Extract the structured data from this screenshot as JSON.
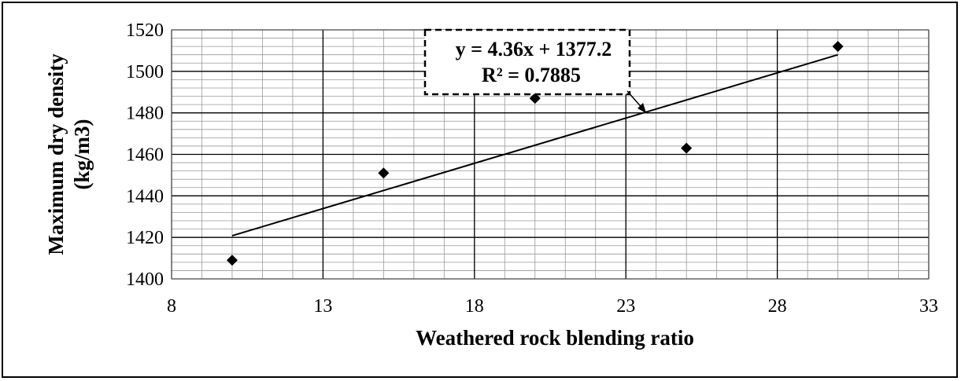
{
  "chart_data": {
    "type": "scatter",
    "title": "",
    "xlabel": "Weathered rock blending ratio",
    "ylabel_line1": "Maximum dry density",
    "ylabel_line2": "(kg/m3)",
    "xlim": [
      8,
      33
    ],
    "ylim": [
      1400,
      1520
    ],
    "x_major_step": 5,
    "y_major_step": 20,
    "x_minor_step": 1,
    "y_minor_step": 4,
    "grid": true,
    "series": [
      {
        "marker": "diamond",
        "color": "#000000",
        "x": [
          10,
          15,
          20,
          25,
          30
        ],
        "y": [
          1409,
          1451,
          1487,
          1463,
          1512
        ]
      }
    ],
    "trendline": {
      "type": "linear",
      "slope": 4.36,
      "intercept": 1377.2,
      "x_range": [
        10,
        30
      ],
      "equation_label": "y = 4.36x + 1377.2",
      "r2_label": "R² = 0.7885"
    },
    "x_tick_labels": [
      "8",
      "13",
      "18",
      "23",
      "28",
      "33"
    ],
    "y_tick_labels": [
      "1400",
      "1420",
      "1440",
      "1460",
      "1480",
      "1500",
      "1520"
    ]
  }
}
